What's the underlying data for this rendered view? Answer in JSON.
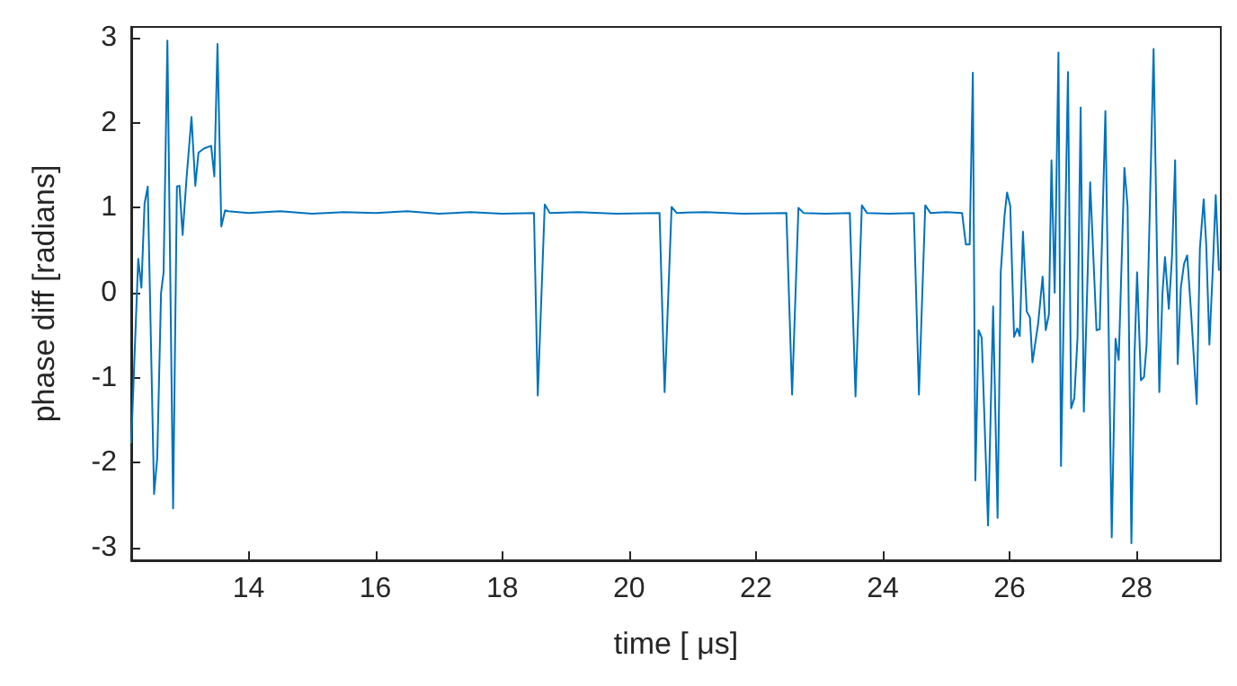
{
  "chart_data": {
    "type": "line",
    "xlabel": "time [ μs]",
    "ylabel": "phase diff [radians]",
    "xlim": [
      12.15,
      29.33
    ],
    "ylim": [
      -3.15,
      3.13
    ],
    "xticks": [
      14,
      16,
      18,
      20,
      22,
      24,
      26,
      28
    ],
    "yticks": [
      -3,
      -2,
      -1,
      0,
      1,
      2,
      3
    ],
    "grid": false,
    "series": [
      {
        "color": "#0072bd",
        "x": [
          12.15,
          12.26,
          12.31,
          12.36,
          12.41,
          12.51,
          12.56,
          12.62,
          12.66,
          12.72,
          12.81,
          12.87,
          12.91,
          12.96,
          13.02,
          13.1,
          13.16,
          13.21,
          13.3,
          13.41,
          13.46,
          13.51,
          13.57,
          13.63,
          13.68,
          14.0,
          14.5,
          15.0,
          15.5,
          16.0,
          16.5,
          17.0,
          17.5,
          18.0,
          18.5,
          18.56,
          18.67,
          18.75,
          19.2,
          19.8,
          20.48,
          20.56,
          20.67,
          20.75,
          21.2,
          21.8,
          22.48,
          22.57,
          22.67,
          22.75,
          23.1,
          23.48,
          23.57,
          23.67,
          23.75,
          24.1,
          24.49,
          24.57,
          24.67,
          24.75,
          25.0,
          25.25,
          25.31,
          25.37,
          25.42,
          25.46,
          25.51,
          25.56,
          25.66,
          25.74,
          25.81,
          25.86,
          25.92,
          25.96,
          26.01,
          26.07,
          26.12,
          26.16,
          26.21,
          26.27,
          26.32,
          26.36,
          26.45,
          26.52,
          26.57,
          26.62,
          26.66,
          26.71,
          26.77,
          26.81,
          26.92,
          26.97,
          27.02,
          27.07,
          27.12,
          27.17,
          27.27,
          27.37,
          27.42,
          27.51,
          27.61,
          27.67,
          27.72,
          27.81,
          27.86,
          27.92,
          27.97,
          28.01,
          28.07,
          28.12,
          28.16,
          28.27,
          28.36,
          28.41,
          28.45,
          28.51,
          28.56,
          28.61,
          28.65,
          28.7,
          28.75,
          28.8,
          28.86,
          28.95,
          29.0,
          29.06,
          29.1,
          29.15,
          29.2,
          29.25,
          29.3
        ],
        "values": [
          -1.77,
          0.4,
          0.06,
          1.05,
          1.25,
          -2.37,
          -1.94,
          0.0,
          0.24,
          2.97,
          -2.54,
          1.25,
          1.26,
          0.68,
          1.33,
          2.07,
          1.26,
          1.65,
          1.7,
          1.73,
          1.37,
          2.93,
          0.78,
          0.97,
          0.96,
          0.94,
          0.96,
          0.93,
          0.95,
          0.94,
          0.96,
          0.93,
          0.95,
          0.93,
          0.94,
          -1.21,
          1.04,
          0.94,
          0.95,
          0.93,
          0.94,
          -1.17,
          1.01,
          0.94,
          0.95,
          0.93,
          0.94,
          -1.2,
          1.0,
          0.94,
          0.93,
          0.94,
          -1.22,
          1.03,
          0.94,
          0.93,
          0.94,
          -1.2,
          1.03,
          0.94,
          0.95,
          0.94,
          0.57,
          0.57,
          2.59,
          -2.21,
          -0.44,
          -0.53,
          -2.74,
          -0.16,
          -2.65,
          0.24,
          0.91,
          1.18,
          1.02,
          -0.52,
          -0.42,
          -0.51,
          0.72,
          -0.22,
          -0.29,
          -0.82,
          -0.36,
          0.19,
          -0.44,
          -0.25,
          1.56,
          0.0,
          2.83,
          -2.04,
          2.6,
          -1.36,
          -1.24,
          -0.54,
          2.18,
          -1.4,
          1.3,
          -0.44,
          -0.43,
          2.14,
          -2.88,
          -0.54,
          -0.79,
          1.47,
          1.02,
          -2.95,
          -0.72,
          0.24,
          -1.03,
          -0.99,
          -0.61,
          2.87,
          -1.17,
          0.0,
          0.42,
          -0.19,
          0.42,
          1.56,
          -0.84,
          0.06,
          0.34,
          0.44,
          -0.22,
          -1.31,
          0.52,
          1.1,
          0.56,
          -0.61,
          0.22,
          1.15,
          0.26
        ]
      }
    ]
  }
}
